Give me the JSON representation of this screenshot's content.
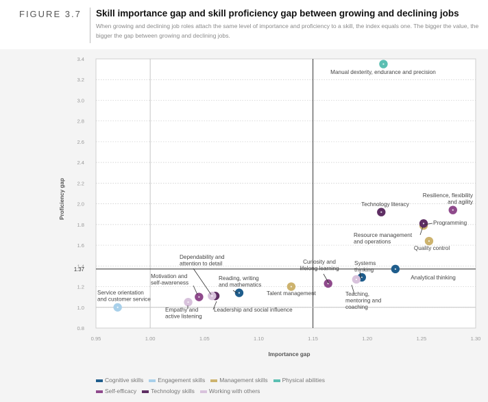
{
  "figure": {
    "label": "FIGURE 3.7",
    "title": "Skill importance gap and skill proficiency gap between growing and declining jobs",
    "subtitle": "When growing and declining job roles attach the same level of importance and proficiency to a skill, the index equals one. The bigger the value, the bigger the gap between growing and declining jobs."
  },
  "colors": {
    "Cognitive skills": "#1f5d8c",
    "Engagement skills": "#a8d0ea",
    "Management skills": "#cdb36e",
    "Physical abilities": "#5bbfb2",
    "Self-efficacy": "#8f4a8c",
    "Technology skills": "#5e2e63",
    "Working with others": "#d8c2dc"
  },
  "chart_data": {
    "type": "scatter",
    "title": "Skill importance gap and skill proficiency gap between growing and declining jobs",
    "xlabel": "Importance gap",
    "ylabel": "Proficiency gap",
    "xlim": [
      0.95,
      1.3
    ],
    "ylim": [
      0.8,
      3.4
    ],
    "xticks": [
      "0.95",
      "1.00",
      "1.05",
      "1.10",
      "1.15",
      "1.20",
      "1.25",
      "1.30"
    ],
    "yticks": [
      "0.8",
      "1.0",
      "1.2",
      "1.4",
      "1.6",
      "1.8",
      "2.0",
      "2.2",
      "2.4",
      "2.6",
      "2.8",
      "3.0",
      "3.2",
      "3.4"
    ],
    "ref_lines": {
      "x": [
        1.0,
        1.15
      ],
      "y": [
        1.0,
        1.37
      ],
      "y_labels": [
        {
          "value": 1.37,
          "label": "1.37"
        }
      ]
    },
    "series": [
      {
        "name": "Cognitive skills",
        "points": [
          {
            "label": "Analytical thinking",
            "x": 1.226,
            "y": 1.37
          },
          {
            "label": "Systems thinking",
            "x": 1.195,
            "y": 1.29
          },
          {
            "label": "Reading, writing and mathematics",
            "x": 1.082,
            "y": 1.14
          }
        ]
      },
      {
        "name": "Engagement skills",
        "points": [
          {
            "label": "Service orientation and customer service",
            "x": 0.97,
            "y": 1.0
          }
        ]
      },
      {
        "name": "Management skills",
        "points": [
          {
            "label": "Resource management and operations",
            "x": 1.252,
            "y": 1.79
          },
          {
            "label": "Quality control",
            "x": 1.257,
            "y": 1.64
          },
          {
            "label": "Talent management",
            "x": 1.13,
            "y": 1.2
          }
        ]
      },
      {
        "name": "Physical abilities",
        "points": [
          {
            "label": "Manual dexterity, endurance and precision",
            "x": 1.215,
            "y": 3.35
          }
        ]
      },
      {
        "name": "Self-efficacy",
        "points": [
          {
            "label": "Resilience, flexibility and agility",
            "x": 1.279,
            "y": 1.94
          },
          {
            "label": "Curiosity and lifelong learning",
            "x": 1.164,
            "y": 1.23
          },
          {
            "label": "Motivation and self-awareness",
            "x": 1.045,
            "y": 1.1
          }
        ]
      },
      {
        "name": "Technology skills",
        "points": [
          {
            "label": "Technology literacy",
            "x": 1.213,
            "y": 1.92
          },
          {
            "label": "Programming",
            "x": 1.252,
            "y": 1.81
          },
          {
            "label": "Dependability and attention to detail",
            "x": 1.06,
            "y": 1.11
          }
        ]
      },
      {
        "name": "Working with others",
        "points": [
          {
            "label": "Teaching, mentoring and coaching",
            "x": 1.19,
            "y": 1.27
          },
          {
            "label": "Leadership and social influence",
            "x": 1.057,
            "y": 1.11
          },
          {
            "label": "Empathy and active listening",
            "x": 1.035,
            "y": 1.05
          }
        ]
      }
    ],
    "legend": [
      [
        "Cognitive skills",
        "Engagement skills",
        "Management skills",
        "Physical abilities"
      ],
      [
        "Self-efficacy",
        "Technology skills",
        "Working with others"
      ]
    ]
  }
}
